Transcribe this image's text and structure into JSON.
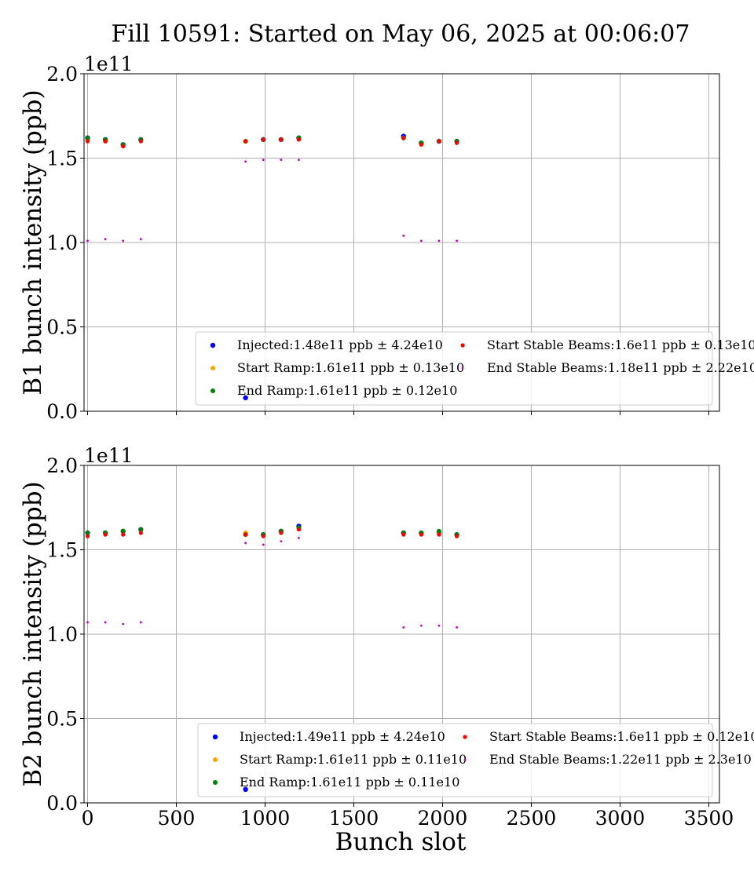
{
  "chart_data": {
    "title": "Fill 10591: Started on May 06, 2025 at 00:06:07",
    "xlabel": "Bunch slot",
    "xlim": [
      -20,
      3560
    ],
    "xticks": [
      0,
      500,
      1000,
      1500,
      2000,
      2500,
      3000,
      3500
    ],
    "grid": true,
    "colors": {
      "Injected": "#0000ff",
      "Start Ramp": "#ffa500",
      "End Ramp": "#008000",
      "Start Stable Beams": "#ff0000",
      "End Stable Beams": "#bf00bf"
    },
    "panels": [
      {
        "type": "scatter",
        "ylabel": "B1 bunch intensity (ppb)",
        "ylim": [
          0,
          2.0
        ],
        "yticks": [
          "0.0",
          "0.5",
          "1.0",
          "1.5",
          "2.0"
        ],
        "scale_label": "1e11",
        "legend_position": "lower-right",
        "series": [
          {
            "name": "Injected",
            "legend": "Injected:1.48e11 ppb ± 4.24e10",
            "size": 3.2,
            "x": [
              0,
              100,
              200,
              300,
              890,
              990,
              1090,
              1190,
              1780,
              1880,
              1980,
              2080
            ],
            "y": [
              1.62,
              1.61,
              1.58,
              1.61,
              0.08,
              1.61,
              1.61,
              1.62,
              1.63,
              1.59,
              1.6,
              1.6
            ]
          },
          {
            "name": "Start Ramp",
            "legend": "Start Ramp:1.61e11 ppb ± 0.13e10",
            "size": 3.0,
            "x": [
              0,
              100,
              200,
              300,
              890,
              990,
              1090,
              1190,
              1780,
              1880,
              1980,
              2080
            ],
            "y": [
              1.61,
              1.6,
              1.58,
              1.61,
              1.6,
              1.61,
              1.61,
              1.62,
              1.62,
              1.59,
              1.6,
              1.6
            ]
          },
          {
            "name": "End Ramp",
            "legend": "End Ramp:1.61e11 ppb ± 0.12e10",
            "size": 3.0,
            "x": [
              0,
              100,
              200,
              300,
              890,
              990,
              1090,
              1190,
              1780,
              1880,
              1980,
              2080
            ],
            "y": [
              1.62,
              1.61,
              1.58,
              1.61,
              1.6,
              1.61,
              1.61,
              1.62,
              1.62,
              1.59,
              1.6,
              1.6
            ]
          },
          {
            "name": "Start Stable Beams",
            "legend": "Start Stable Beams:1.6e11 ppb ± 0.13e10",
            "size": 2.6,
            "x": [
              0,
              100,
              200,
              300,
              890,
              990,
              1090,
              1190,
              1780,
              1880,
              1980,
              2080
            ],
            "y": [
              1.6,
              1.6,
              1.57,
              1.6,
              1.6,
              1.61,
              1.61,
              1.61,
              1.62,
              1.58,
              1.6,
              1.59
            ]
          },
          {
            "name": "End Stable Beams",
            "legend": "End Stable Beams:1.18e11 ppb ± 2.22e10",
            "size": 1.4,
            "x": [
              0,
              100,
              200,
              300,
              890,
              990,
              1090,
              1190,
              1780,
              1880,
              1980,
              2080
            ],
            "y": [
              1.01,
              1.02,
              1.01,
              1.02,
              1.48,
              1.49,
              1.49,
              1.49,
              1.04,
              1.01,
              1.01,
              1.01
            ]
          }
        ]
      },
      {
        "type": "scatter",
        "ylabel": "B2 bunch intensity (ppb)",
        "ylim": [
          0,
          2.0
        ],
        "yticks": [
          "0.0",
          "0.5",
          "1.0",
          "1.5",
          "2.0"
        ],
        "scale_label": "1e11",
        "legend_position": "lower-right",
        "series": [
          {
            "name": "Injected",
            "legend": "Injected:1.49e11 ppb ± 4.24e10",
            "size": 3.2,
            "x": [
              0,
              100,
              200,
              300,
              890,
              990,
              1090,
              1190,
              1780,
              1880,
              1980,
              2080
            ],
            "y": [
              1.6,
              1.6,
              1.61,
              1.62,
              0.08,
              1.59,
              1.61,
              1.64,
              1.6,
              1.6,
              1.6,
              1.59
            ]
          },
          {
            "name": "Start Ramp",
            "legend": "Start Ramp:1.61e11 ppb ± 0.11e10",
            "size": 3.0,
            "x": [
              0,
              100,
              200,
              300,
              890,
              990,
              1090,
              1190,
              1780,
              1880,
              1980,
              2080
            ],
            "y": [
              1.6,
              1.6,
              1.61,
              1.62,
              1.6,
              1.59,
              1.61,
              1.63,
              1.6,
              1.6,
              1.6,
              1.59
            ]
          },
          {
            "name": "End Ramp",
            "legend": "End Ramp:1.61e11 ppb ± 0.11e10",
            "size": 3.0,
            "x": [
              0,
              100,
              200,
              300,
              890,
              990,
              1090,
              1190,
              1780,
              1880,
              1980,
              2080
            ],
            "y": [
              1.6,
              1.6,
              1.61,
              1.62,
              1.59,
              1.59,
              1.61,
              1.63,
              1.6,
              1.6,
              1.61,
              1.59
            ]
          },
          {
            "name": "Start Stable Beams",
            "legend": "Start Stable Beams:1.6e11 ppb ± 0.12e10",
            "size": 2.6,
            "x": [
              0,
              100,
              200,
              300,
              890,
              990,
              1090,
              1190,
              1780,
              1880,
              1980,
              2080
            ],
            "y": [
              1.58,
              1.59,
              1.59,
              1.6,
              1.59,
              1.58,
              1.6,
              1.62,
              1.59,
              1.59,
              1.59,
              1.58
            ]
          },
          {
            "name": "End Stable Beams",
            "legend": "End Stable Beams:1.22e11 ppb ± 2.3e10",
            "size": 1.4,
            "x": [
              0,
              100,
              200,
              300,
              890,
              990,
              1090,
              1190,
              1780,
              1880,
              1980,
              2080
            ],
            "y": [
              1.07,
              1.07,
              1.06,
              1.07,
              1.54,
              1.53,
              1.55,
              1.57,
              1.04,
              1.05,
              1.05,
              1.04
            ]
          }
        ]
      }
    ]
  }
}
